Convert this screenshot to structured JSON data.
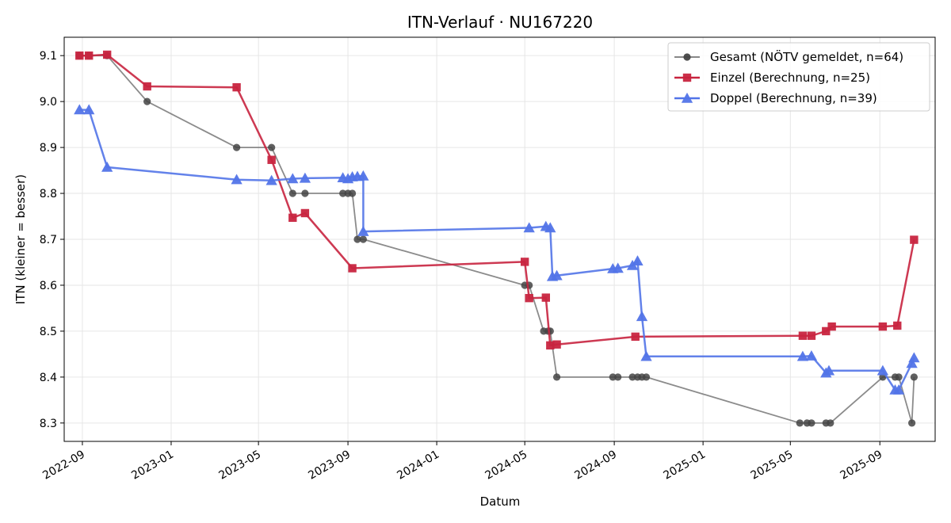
{
  "chart_data": {
    "type": "line",
    "title": "ITN-Verlauf · NU167220",
    "xlabel": "Datum",
    "ylabel": "ITN  (kleiner = besser)",
    "x_type": "date",
    "xlim": [
      "2022-08-07",
      "2025-11-16"
    ],
    "ylim": [
      8.26,
      9.14
    ],
    "x_ticks": [
      "2022-09-01",
      "2023-01-01",
      "2023-05-01",
      "2023-09-01",
      "2024-01-01",
      "2024-05-01",
      "2024-09-01",
      "2025-01-01",
      "2025-05-01",
      "2025-09-01"
    ],
    "x_tick_labels": [
      "2022-09",
      "2023-01",
      "2023-05",
      "2023-09",
      "2024-01",
      "2024-05",
      "2024-09",
      "2025-01",
      "2025-05",
      "2025-09"
    ],
    "y_ticks": [
      8.3,
      8.4,
      8.5,
      8.6,
      8.7,
      8.8,
      8.9,
      9.0,
      9.1
    ],
    "y_tick_labels": [
      "8.3",
      "8.4",
      "8.5",
      "8.6",
      "8.7",
      "8.8",
      "8.9",
      "9.0",
      "9.1"
    ],
    "grid": true,
    "legend_position": "top-right",
    "series": [
      {
        "name": "Gesamt (NÖTV gemeldet, n=64)",
        "color": "#777777",
        "marker_color": "#444444",
        "marker": "circle",
        "points": [
          [
            "2022-08-28",
            9.1
          ],
          [
            "2022-09-10",
            9.1
          ],
          [
            "2022-10-05",
            9.1
          ],
          [
            "2022-11-29",
            9.0
          ],
          [
            "2023-04-01",
            8.9
          ],
          [
            "2023-05-19",
            8.9
          ],
          [
            "2023-06-17",
            8.8
          ],
          [
            "2023-07-04",
            8.8
          ],
          [
            "2023-08-25",
            8.8
          ],
          [
            "2023-09-01",
            8.8
          ],
          [
            "2023-09-07",
            8.8
          ],
          [
            "2023-09-14",
            8.7
          ],
          [
            "2023-09-22",
            8.7
          ],
          [
            "2024-05-01",
            8.6
          ],
          [
            "2024-05-07",
            8.6
          ],
          [
            "2024-05-27",
            8.5
          ],
          [
            "2024-06-02",
            8.5
          ],
          [
            "2024-06-05",
            8.5
          ],
          [
            "2024-06-14",
            8.4
          ],
          [
            "2024-08-30",
            8.4
          ],
          [
            "2024-09-06",
            8.4
          ],
          [
            "2024-09-26",
            8.4
          ],
          [
            "2024-10-03",
            8.4
          ],
          [
            "2024-10-09",
            8.4
          ],
          [
            "2024-10-15",
            8.4
          ],
          [
            "2025-05-14",
            8.3
          ],
          [
            "2025-05-24",
            8.3
          ],
          [
            "2025-05-30",
            8.3
          ],
          [
            "2025-06-19",
            8.3
          ],
          [
            "2025-06-25",
            8.3
          ],
          [
            "2025-09-05",
            8.4
          ],
          [
            "2025-09-22",
            8.4
          ],
          [
            "2025-09-27",
            8.4
          ],
          [
            "2025-10-15",
            8.3
          ],
          [
            "2025-10-18",
            8.4
          ]
        ]
      },
      {
        "name": "Einzel (Berechnung, n=25)",
        "color": "#C8243F",
        "marker_color": "#C8243F",
        "marker": "square",
        "points": [
          [
            "2022-08-28",
            9.1
          ],
          [
            "2022-09-10",
            9.1
          ],
          [
            "2022-10-05",
            9.102
          ],
          [
            "2022-11-29",
            9.033
          ],
          [
            "2023-04-01",
            9.031
          ],
          [
            "2023-05-19",
            8.873
          ],
          [
            "2023-06-17",
            8.747
          ],
          [
            "2023-07-04",
            8.757
          ],
          [
            "2023-09-07",
            8.637
          ],
          [
            "2024-05-01",
            8.651
          ],
          [
            "2024-05-07",
            8.572
          ],
          [
            "2024-05-30",
            8.573
          ],
          [
            "2024-06-05",
            8.469
          ],
          [
            "2024-06-14",
            8.471
          ],
          [
            "2024-09-30",
            8.488
          ],
          [
            "2025-05-18",
            8.49
          ],
          [
            "2025-05-30",
            8.49
          ],
          [
            "2025-06-19",
            8.5
          ],
          [
            "2025-06-27",
            8.51
          ],
          [
            "2025-09-05",
            8.51
          ],
          [
            "2025-09-25",
            8.512
          ],
          [
            "2025-10-18",
            8.699
          ]
        ]
      },
      {
        "name": "Doppel (Berechnung, n=39)",
        "color": "#5274E8",
        "marker_color": "#5274E8",
        "marker": "triangle",
        "points": [
          [
            "2022-08-28",
            8.982
          ],
          [
            "2022-09-10",
            8.982
          ],
          [
            "2022-10-05",
            8.857
          ],
          [
            "2023-04-01",
            8.83
          ],
          [
            "2023-05-19",
            8.828
          ],
          [
            "2023-06-17",
            8.832
          ],
          [
            "2023-07-04",
            8.833
          ],
          [
            "2023-08-25",
            8.834
          ],
          [
            "2023-09-01",
            8.832
          ],
          [
            "2023-09-07",
            8.836
          ],
          [
            "2023-09-14",
            8.837
          ],
          [
            "2023-09-22",
            8.838
          ],
          [
            "2023-09-22",
            8.717
          ],
          [
            "2024-05-07",
            8.725
          ],
          [
            "2024-05-30",
            8.728
          ],
          [
            "2024-06-05",
            8.725
          ],
          [
            "2024-06-08",
            8.619
          ],
          [
            "2024-06-14",
            8.621
          ],
          [
            "2024-08-30",
            8.636
          ],
          [
            "2024-09-06",
            8.637
          ],
          [
            "2024-09-26",
            8.643
          ],
          [
            "2024-10-03",
            8.653
          ],
          [
            "2024-10-09",
            8.532
          ],
          [
            "2024-10-15",
            8.445
          ],
          [
            "2025-05-18",
            8.445
          ],
          [
            "2025-05-30",
            8.446
          ],
          [
            "2025-06-19",
            8.409
          ],
          [
            "2025-06-23",
            8.414
          ],
          [
            "2025-09-05",
            8.414
          ],
          [
            "2025-09-22",
            8.372
          ],
          [
            "2025-09-27",
            8.372
          ],
          [
            "2025-10-15",
            8.43
          ],
          [
            "2025-10-18",
            8.442
          ]
        ]
      }
    ]
  }
}
